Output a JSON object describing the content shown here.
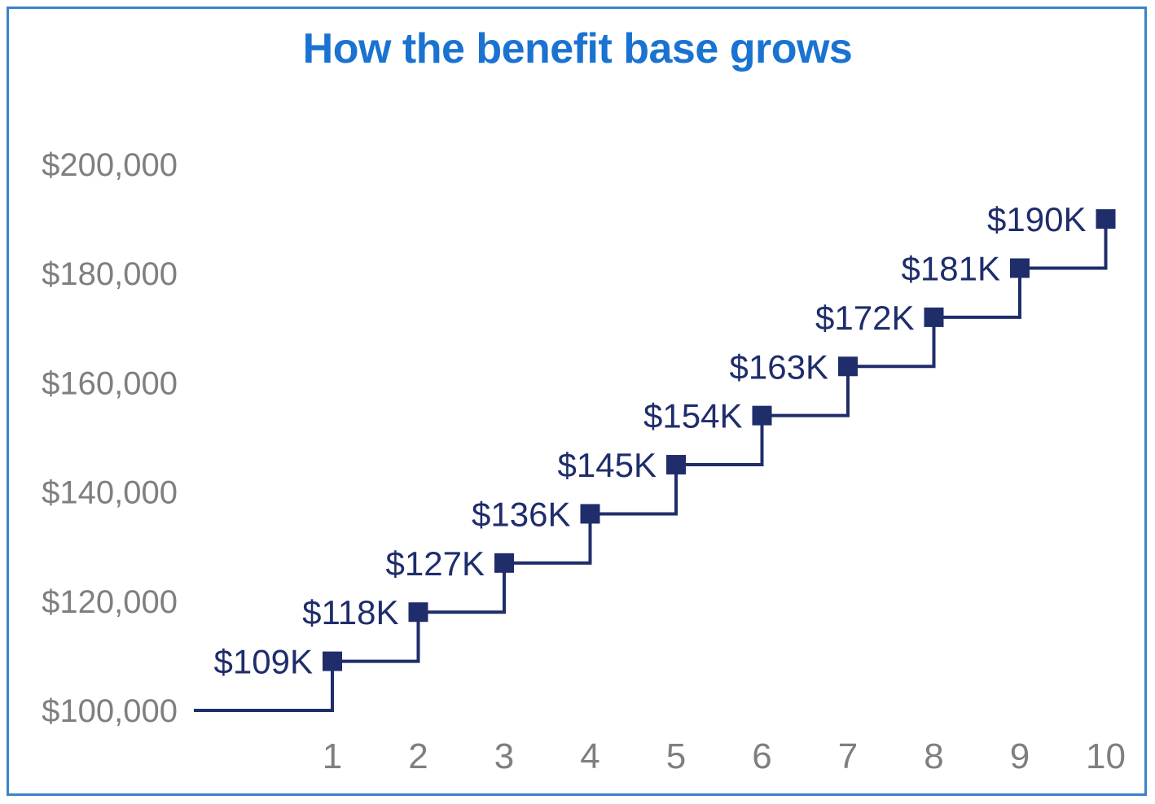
{
  "chart_data": {
    "type": "line",
    "subtype": "step",
    "title": "How the benefit base grows",
    "xlabel": "",
    "ylabel": "",
    "ylim": [
      100000,
      200000
    ],
    "yticks": [
      100000,
      120000,
      140000,
      160000,
      180000,
      200000
    ],
    "ytick_labels": [
      "$100,000",
      "$120,000",
      "$140,000",
      "$160,000",
      "$180,000",
      "$200,000"
    ],
    "start_value": 100000,
    "x": [
      1,
      2,
      3,
      4,
      5,
      6,
      7,
      8,
      9,
      10
    ],
    "xtick_labels": [
      "1",
      "2",
      "3",
      "4",
      "5",
      "6",
      "7",
      "8",
      "9",
      "10"
    ],
    "values": [
      109000,
      118000,
      127000,
      136000,
      145000,
      154000,
      163000,
      172000,
      181000,
      190000
    ],
    "data_labels": [
      "$109K",
      "$118K",
      "$127K",
      "$136K",
      "$145K",
      "$154K",
      "$163K",
      "$172K",
      "$181K",
      "$190K"
    ],
    "grid": false,
    "legend": "none",
    "colors": {
      "series": "#1f2d6b",
      "axis_text": "#7f7f7f",
      "title": "#1a73d1",
      "border": "#3a84c9"
    }
  }
}
